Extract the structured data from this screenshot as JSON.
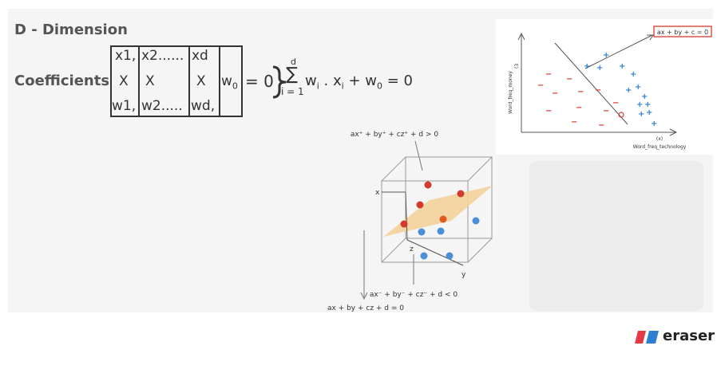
{
  "slide": {
    "title": "D - Dimension",
    "coefficients_label": "Coefficients",
    "matrix": {
      "col1": [
        "x1,",
        "X",
        "w1,"
      ],
      "col2": [
        "x2......",
        "X",
        "w2....."
      ],
      "col3": [
        "xd",
        "X",
        "wd,"
      ],
      "col4": "w",
      "col4_sub": "0"
    },
    "equation": {
      "equals_zero": "= 0",
      "sum_top": "d",
      "sum_bottom": "i = 1",
      "sigma": "∑",
      "term_w": "w",
      "term_w_sub": "i",
      "dot_x": ". x",
      "term_x_sub": "i",
      "plus_w": "+ w",
      "plus_w_sub": "0",
      "result": "= 0"
    }
  },
  "plot2d": {
    "y_axis_label": "Word_freq_money",
    "y_tick": "(3",
    "x_axis_label": "Word_freq_technology",
    "x_tick": "(x)",
    "boundary_eq": "ax + by + c = 0",
    "minus_symbol": "−",
    "plus_symbol": "+"
  },
  "plot3d": {
    "top_eq": "ax⁺ + by⁺ + cz⁺ + d > 0",
    "bottom_eq": "ax⁻ + by⁻ + cz⁻ + d < 0",
    "plane_eq": "ax + by + cz + d = 0",
    "axis_x": "x",
    "axis_y": "y",
    "axis_z": "z",
    "colors": {
      "red": "#d33a2c",
      "blue": "#4a90d9",
      "orange": "#e05a1e",
      "plane": "#f3d39a"
    }
  },
  "branding": {
    "logo_text": "eraser",
    "logo_colors": [
      "#e63946",
      "#2d7fd3"
    ]
  }
}
